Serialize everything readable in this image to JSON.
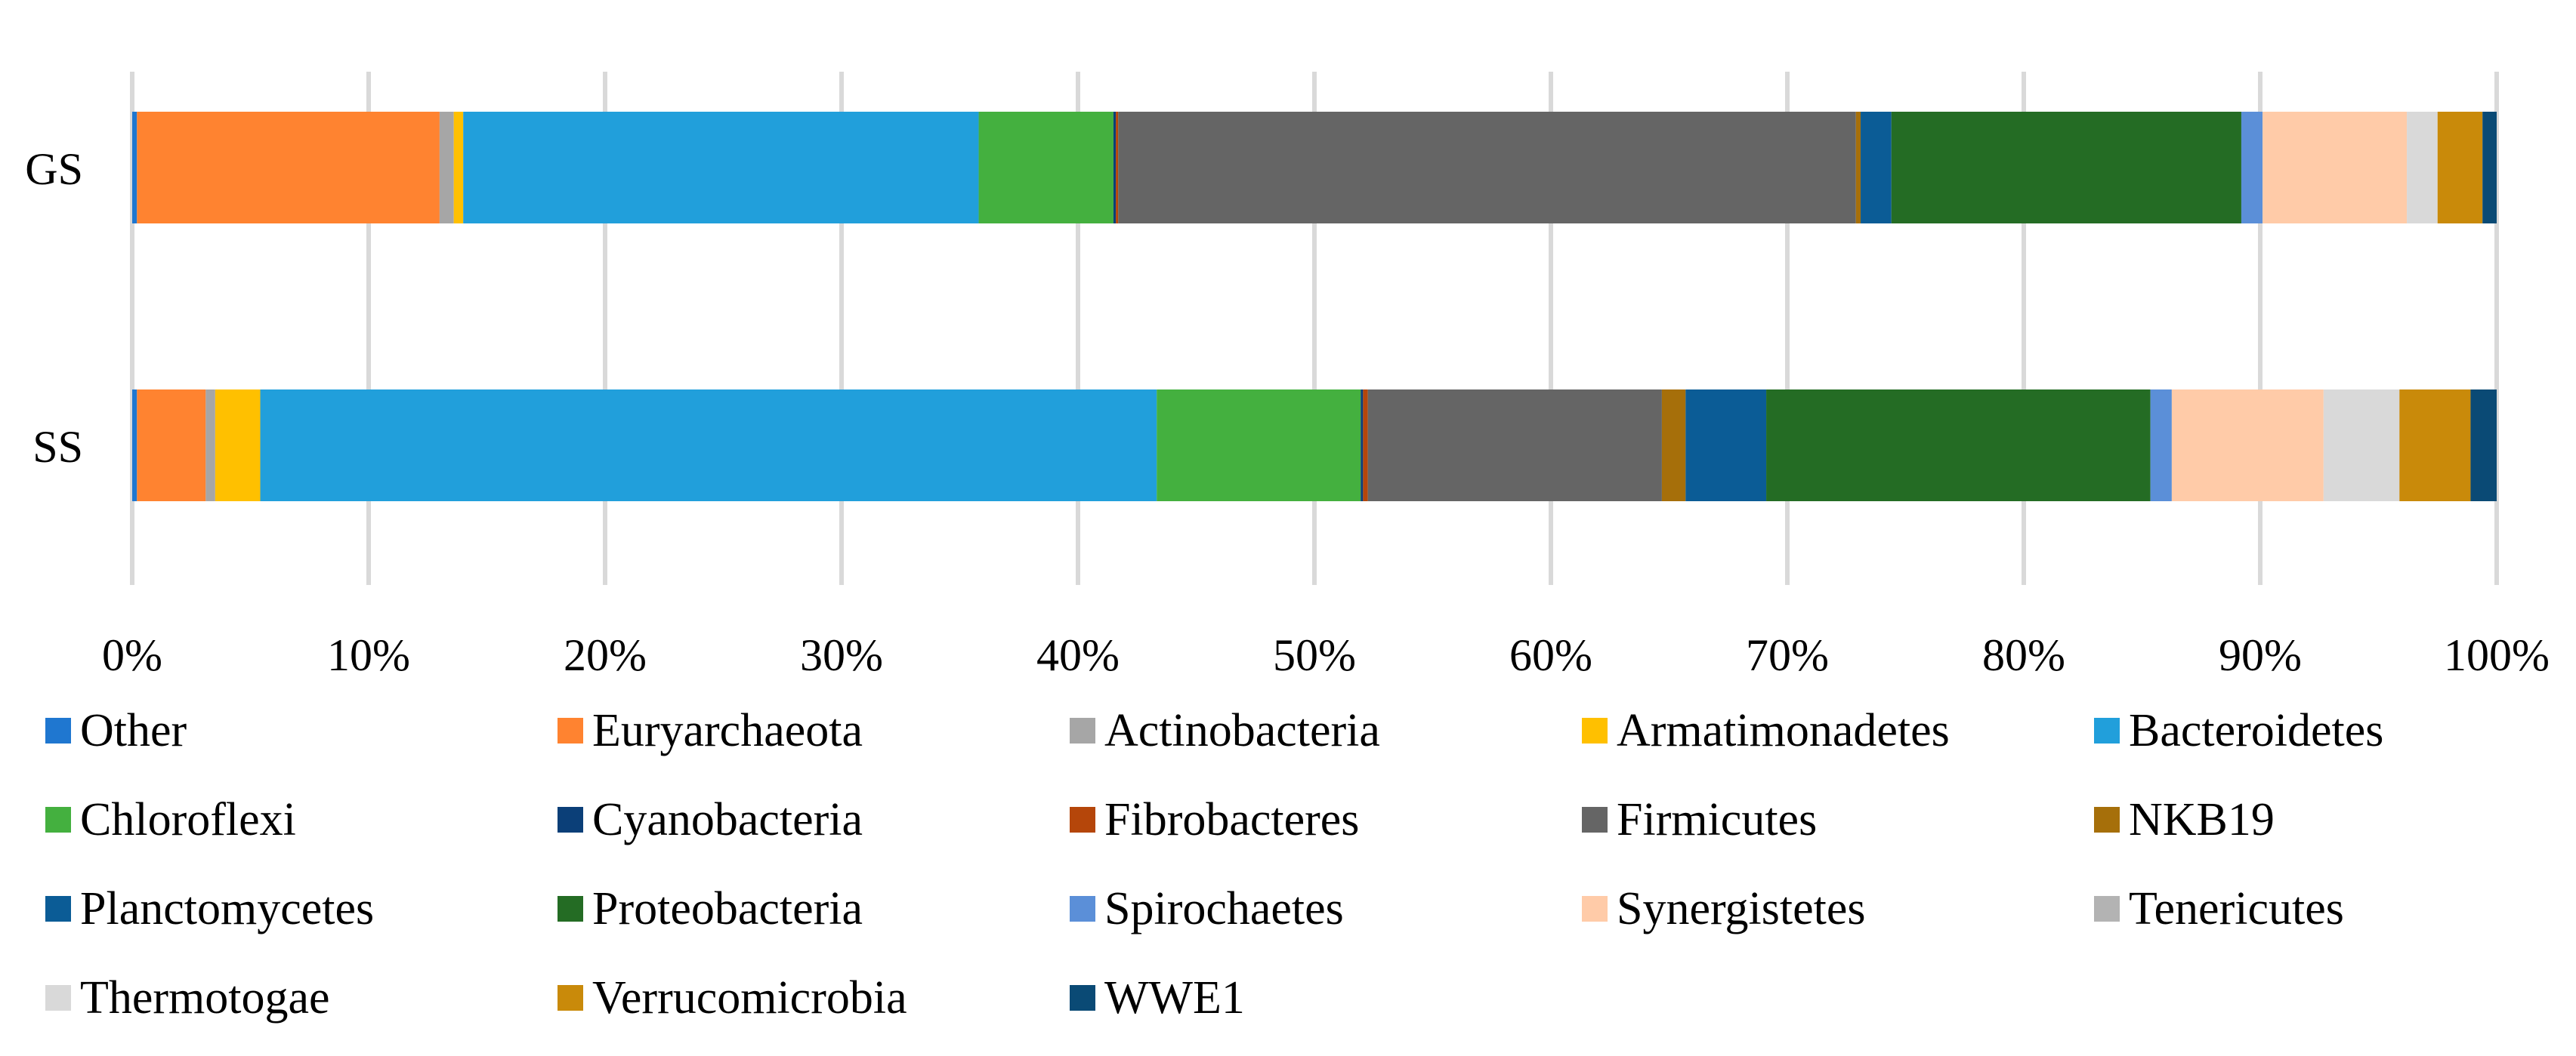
{
  "chart_data": {
    "type": "bar",
    "orientation": "horizontal",
    "stacked": "percent",
    "title": "",
    "xlabel": "",
    "ylabel": "",
    "xlim": [
      0,
      100
    ],
    "x_ticks": [
      "0%",
      "10%",
      "20%",
      "30%",
      "40%",
      "50%",
      "60%",
      "70%",
      "80%",
      "90%",
      "100%"
    ],
    "grid": "vertical",
    "legend_position": "bottom",
    "categories": [
      "GS",
      "SS"
    ],
    "series": [
      {
        "name": "Other",
        "color": "#1F77D0",
        "values": [
          0.2,
          0.2
        ]
      },
      {
        "name": "Euryarchaeota",
        "color": "#FF8330",
        "values": [
          12.8,
          2.9
        ]
      },
      {
        "name": "Actinobacteria",
        "color": "#A6A6A6",
        "values": [
          0.6,
          0.4
        ]
      },
      {
        "name": "Armatimonadetes",
        "color": "#FFC000",
        "values": [
          0.4,
          1.9
        ]
      },
      {
        "name": "Bacteroidetes",
        "color": "#219FDB",
        "values": [
          21.8,
          37.8
        ]
      },
      {
        "name": "Chloroflexi",
        "color": "#44B03F",
        "values": [
          5.7,
          8.6
        ]
      },
      {
        "name": "Cyanobacteria",
        "color": "#0B3F78",
        "values": [
          0.1,
          0.1
        ]
      },
      {
        "name": "Fibrobacteres",
        "color": "#B5460A",
        "values": [
          0.1,
          0.2
        ]
      },
      {
        "name": "Firmicutes",
        "color": "#656565",
        "values": [
          31.2,
          12.4
        ]
      },
      {
        "name": "NKB19",
        "color": "#A66F0A",
        "values": [
          0.2,
          1.0
        ]
      },
      {
        "name": "Planctomycetes",
        "color": "#0B5C96",
        "values": [
          1.3,
          3.4
        ]
      },
      {
        "name": "Proteobacteria",
        "color": "#246C24",
        "values": [
          14.8,
          16.2
        ]
      },
      {
        "name": "Spirochaetes",
        "color": "#5B8FD8",
        "values": [
          0.9,
          0.9
        ]
      },
      {
        "name": "Synergistetes",
        "color": "#FFCBA8",
        "values": [
          6.1,
          6.4
        ]
      },
      {
        "name": "Tenericutes",
        "color": "#B3B3B3",
        "values": [
          0.0,
          0.0
        ]
      },
      {
        "name": "Thermotogae",
        "color": "#D9D9D9",
        "values": [
          1.3,
          3.2
        ]
      },
      {
        "name": "Verrucomicrobia",
        "color": "#C98A0A",
        "values": [
          1.9,
          3.0
        ]
      },
      {
        "name": "WWE1",
        "color": "#0A4A75",
        "values": [
          0.6,
          1.1
        ]
      }
    ]
  }
}
